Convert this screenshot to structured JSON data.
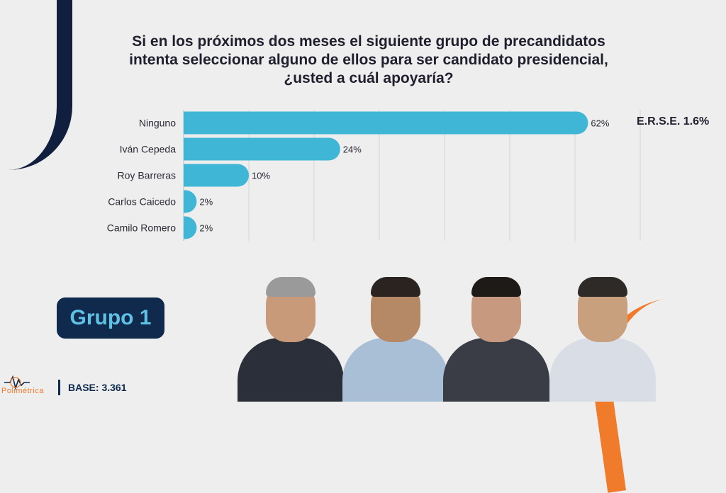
{
  "title_lines": [
    "Si en los próximos dos meses el siguiente grupo de precandidatos",
    "intenta seleccionar alguno de ellos para ser candidato presidencial,",
    "¿usted a cuál apoyaría?"
  ],
  "chart_data": {
    "type": "bar",
    "orientation": "horizontal",
    "categories": [
      "Ninguno",
      "Iván Cepeda",
      "Roy Barreras",
      "Carlos Caicedo",
      "Camilo Romero"
    ],
    "values": [
      62,
      24,
      10,
      2,
      2
    ],
    "data_labels": [
      "62%",
      "24%",
      "10%",
      "2%",
      "2%"
    ],
    "xlim": [
      0,
      70
    ],
    "grid": true,
    "bar_color": "#3fb6d6"
  },
  "erse": "E.R.S.E. 1.6%",
  "group_label": "Grupo 1",
  "logo_text": "Polimétrica",
  "base": "BASE: 3.361",
  "colors": {
    "navy": "#0f2a4d",
    "orange": "#f07b2a",
    "accent": "#5fc1e3"
  },
  "icons": [
    "waveform-logo-icon"
  ]
}
